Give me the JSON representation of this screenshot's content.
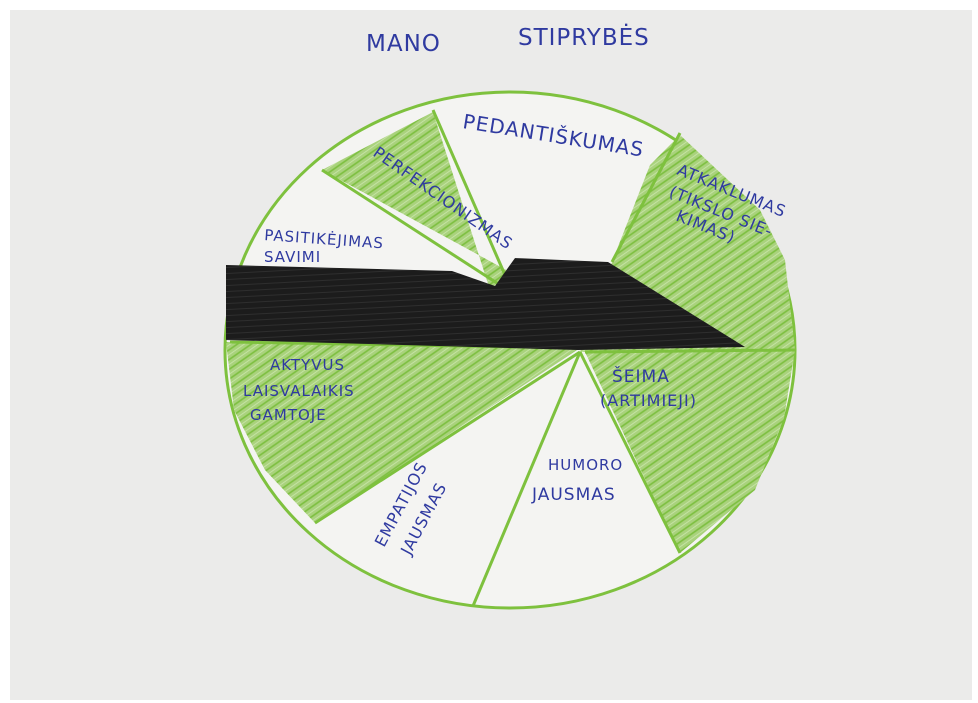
{
  "title": {
    "left": "MANO",
    "right": "STIPRYBĖS"
  },
  "pie": {
    "slices": [
      {
        "label": "PEDANTIŠKUMAS",
        "fill": "white"
      },
      {
        "label": "ATKAKLUMAS (TIKSLO SIE- KIMAS)",
        "fill": "green"
      },
      {
        "label": "ŠEIMA (ARTIMIEJI)",
        "fill": "green"
      },
      {
        "label": "HUMORO JAUSMAS",
        "fill": "white"
      },
      {
        "label": "EMPATIJOS JAUSMAS",
        "fill": "white"
      },
      {
        "label": "AKTYVUS LAISVALAIKIS GAMTOJE",
        "fill": "green"
      },
      {
        "label": "PASITIKĖJIMAS SAVIMI",
        "fill": "white"
      },
      {
        "label": "PERFEKCIONIZMAS",
        "fill": "green"
      }
    ],
    "labels": {
      "pedantiskumas": "PEDANTIŠKUMAS",
      "atkaklumas_1": "ATKAKLUMAS",
      "atkaklumas_2": "(TIKSLO SIE-",
      "atkaklumas_3": "KIMAS)",
      "seima_1": "ŠEIMA",
      "seima_2": "(ARTIMIEJI)",
      "humoro_1": "HUMORO",
      "humoro_2": "JAUSMAS",
      "empatijos_1": "EMPATIJOS",
      "empatijos_2": "JAUSMAS",
      "aktyvus_1": "AKTYVUS",
      "aktyvus_2": "LAISVALAIKIS",
      "aktyvus_3": "GAMTOJE",
      "pasitikejimas_1": "PASITIKĖJIMAS",
      "pasitikejimas_2": "SAVIMI",
      "perfekcionizmas": "PERFEKCIONIZMAS"
    }
  },
  "colors": {
    "paper": "#ebebea",
    "pencil_green": "#7ec13e",
    "green_fill": "#a7d07a",
    "marker_black": "#1b1b1b",
    "ink_blue": "#2f3aa0"
  }
}
